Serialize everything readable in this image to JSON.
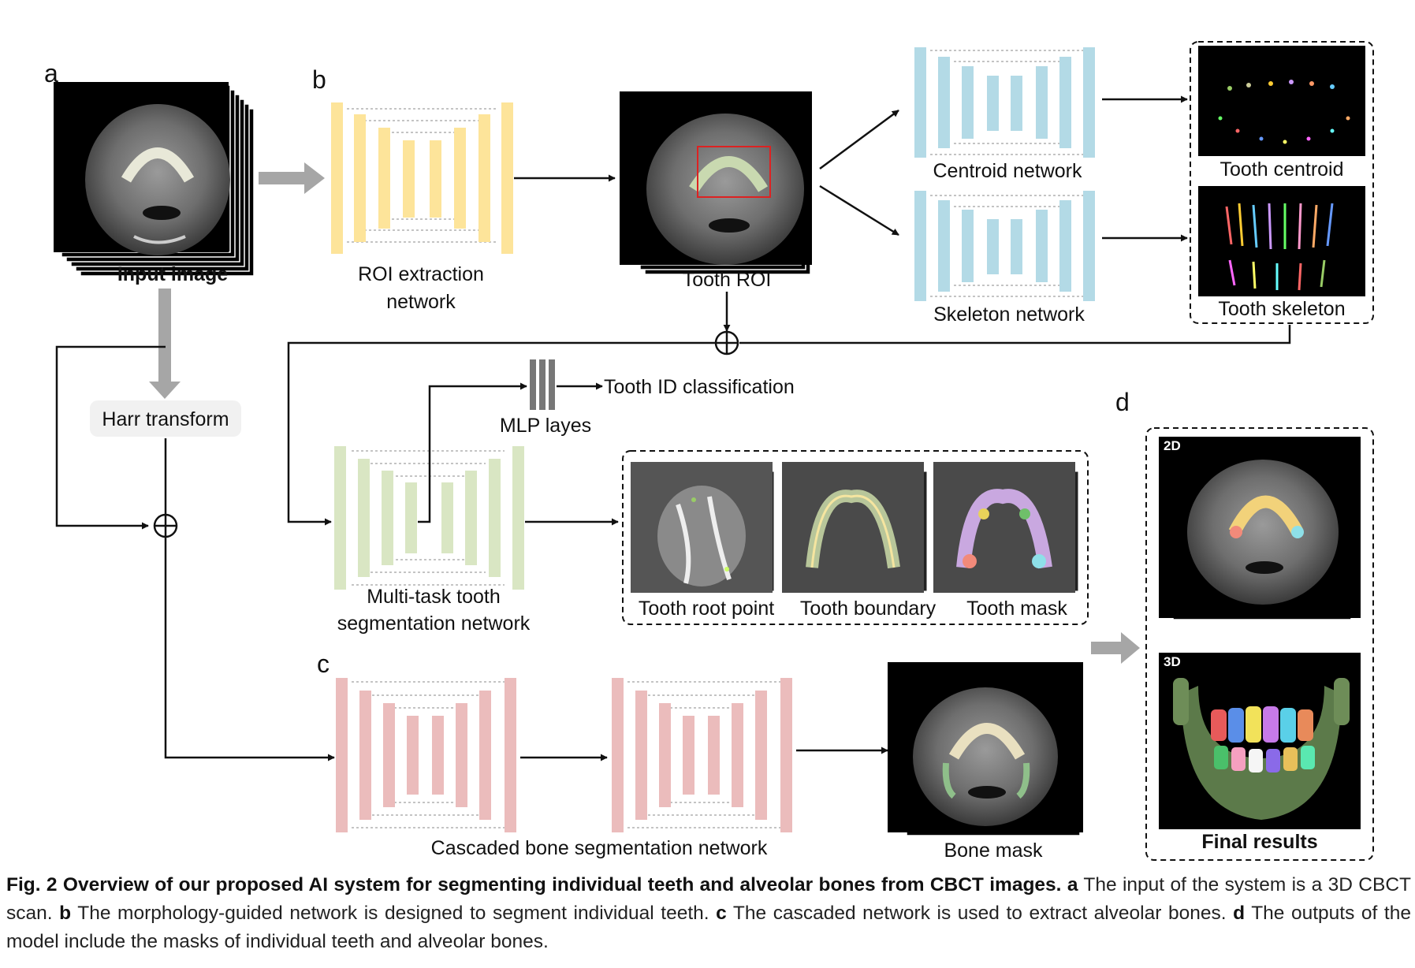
{
  "panels": {
    "a": "a",
    "b": "b",
    "c": "c",
    "d": "d"
  },
  "labels": {
    "input_image": "Input image",
    "roi_line1": "ROI extraction",
    "roi_line2": "network",
    "tooth_roi": "Tooth ROI",
    "centroid_network": "Centroid network",
    "skeleton_network": "Skeleton network",
    "tooth_centroid": "Tooth centroid",
    "tooth_skeleton": "Tooth skeleton",
    "harr_transform": "Harr transform",
    "tooth_id": "Tooth ID classification",
    "mlp": "MLP layes",
    "multitask_line1": "Multi-task tooth",
    "multitask_line2": "segmentation network",
    "tooth_root_point": "Tooth root point",
    "tooth_boundary": "Tooth boundary",
    "tooth_mask": "Tooth mask",
    "cascaded": "Cascaded bone segmentation network",
    "bone_mask": "Bone mask",
    "badge_2d": "2D",
    "badge_3d": "3D",
    "final_results": "Final results"
  },
  "colors": {
    "roi_net": "#fde49a",
    "seg_net": "#d9e6c3",
    "centroid_net": "#b3dae6",
    "bone_net": "#ebbcbc",
    "arrow": "#111111",
    "thick_arrow": "#a6a6a6"
  },
  "caption": {
    "fig_label": "Fig. 2",
    "title": "Overview of our proposed AI system for segmenting individual teeth and alveolar bones from CBCT images.",
    "a_key": "a",
    "a_text": "The input of the system is a 3D CBCT scan.",
    "b_key": "b",
    "b_text": "The morphology-guided network is designed to segment individual teeth.",
    "c_key": "c",
    "c_text": "The cascaded network is used to extract alveolar bones.",
    "d_key": "d",
    "d_text": "The outputs of the model include the masks of individual teeth and alveolar bones."
  }
}
